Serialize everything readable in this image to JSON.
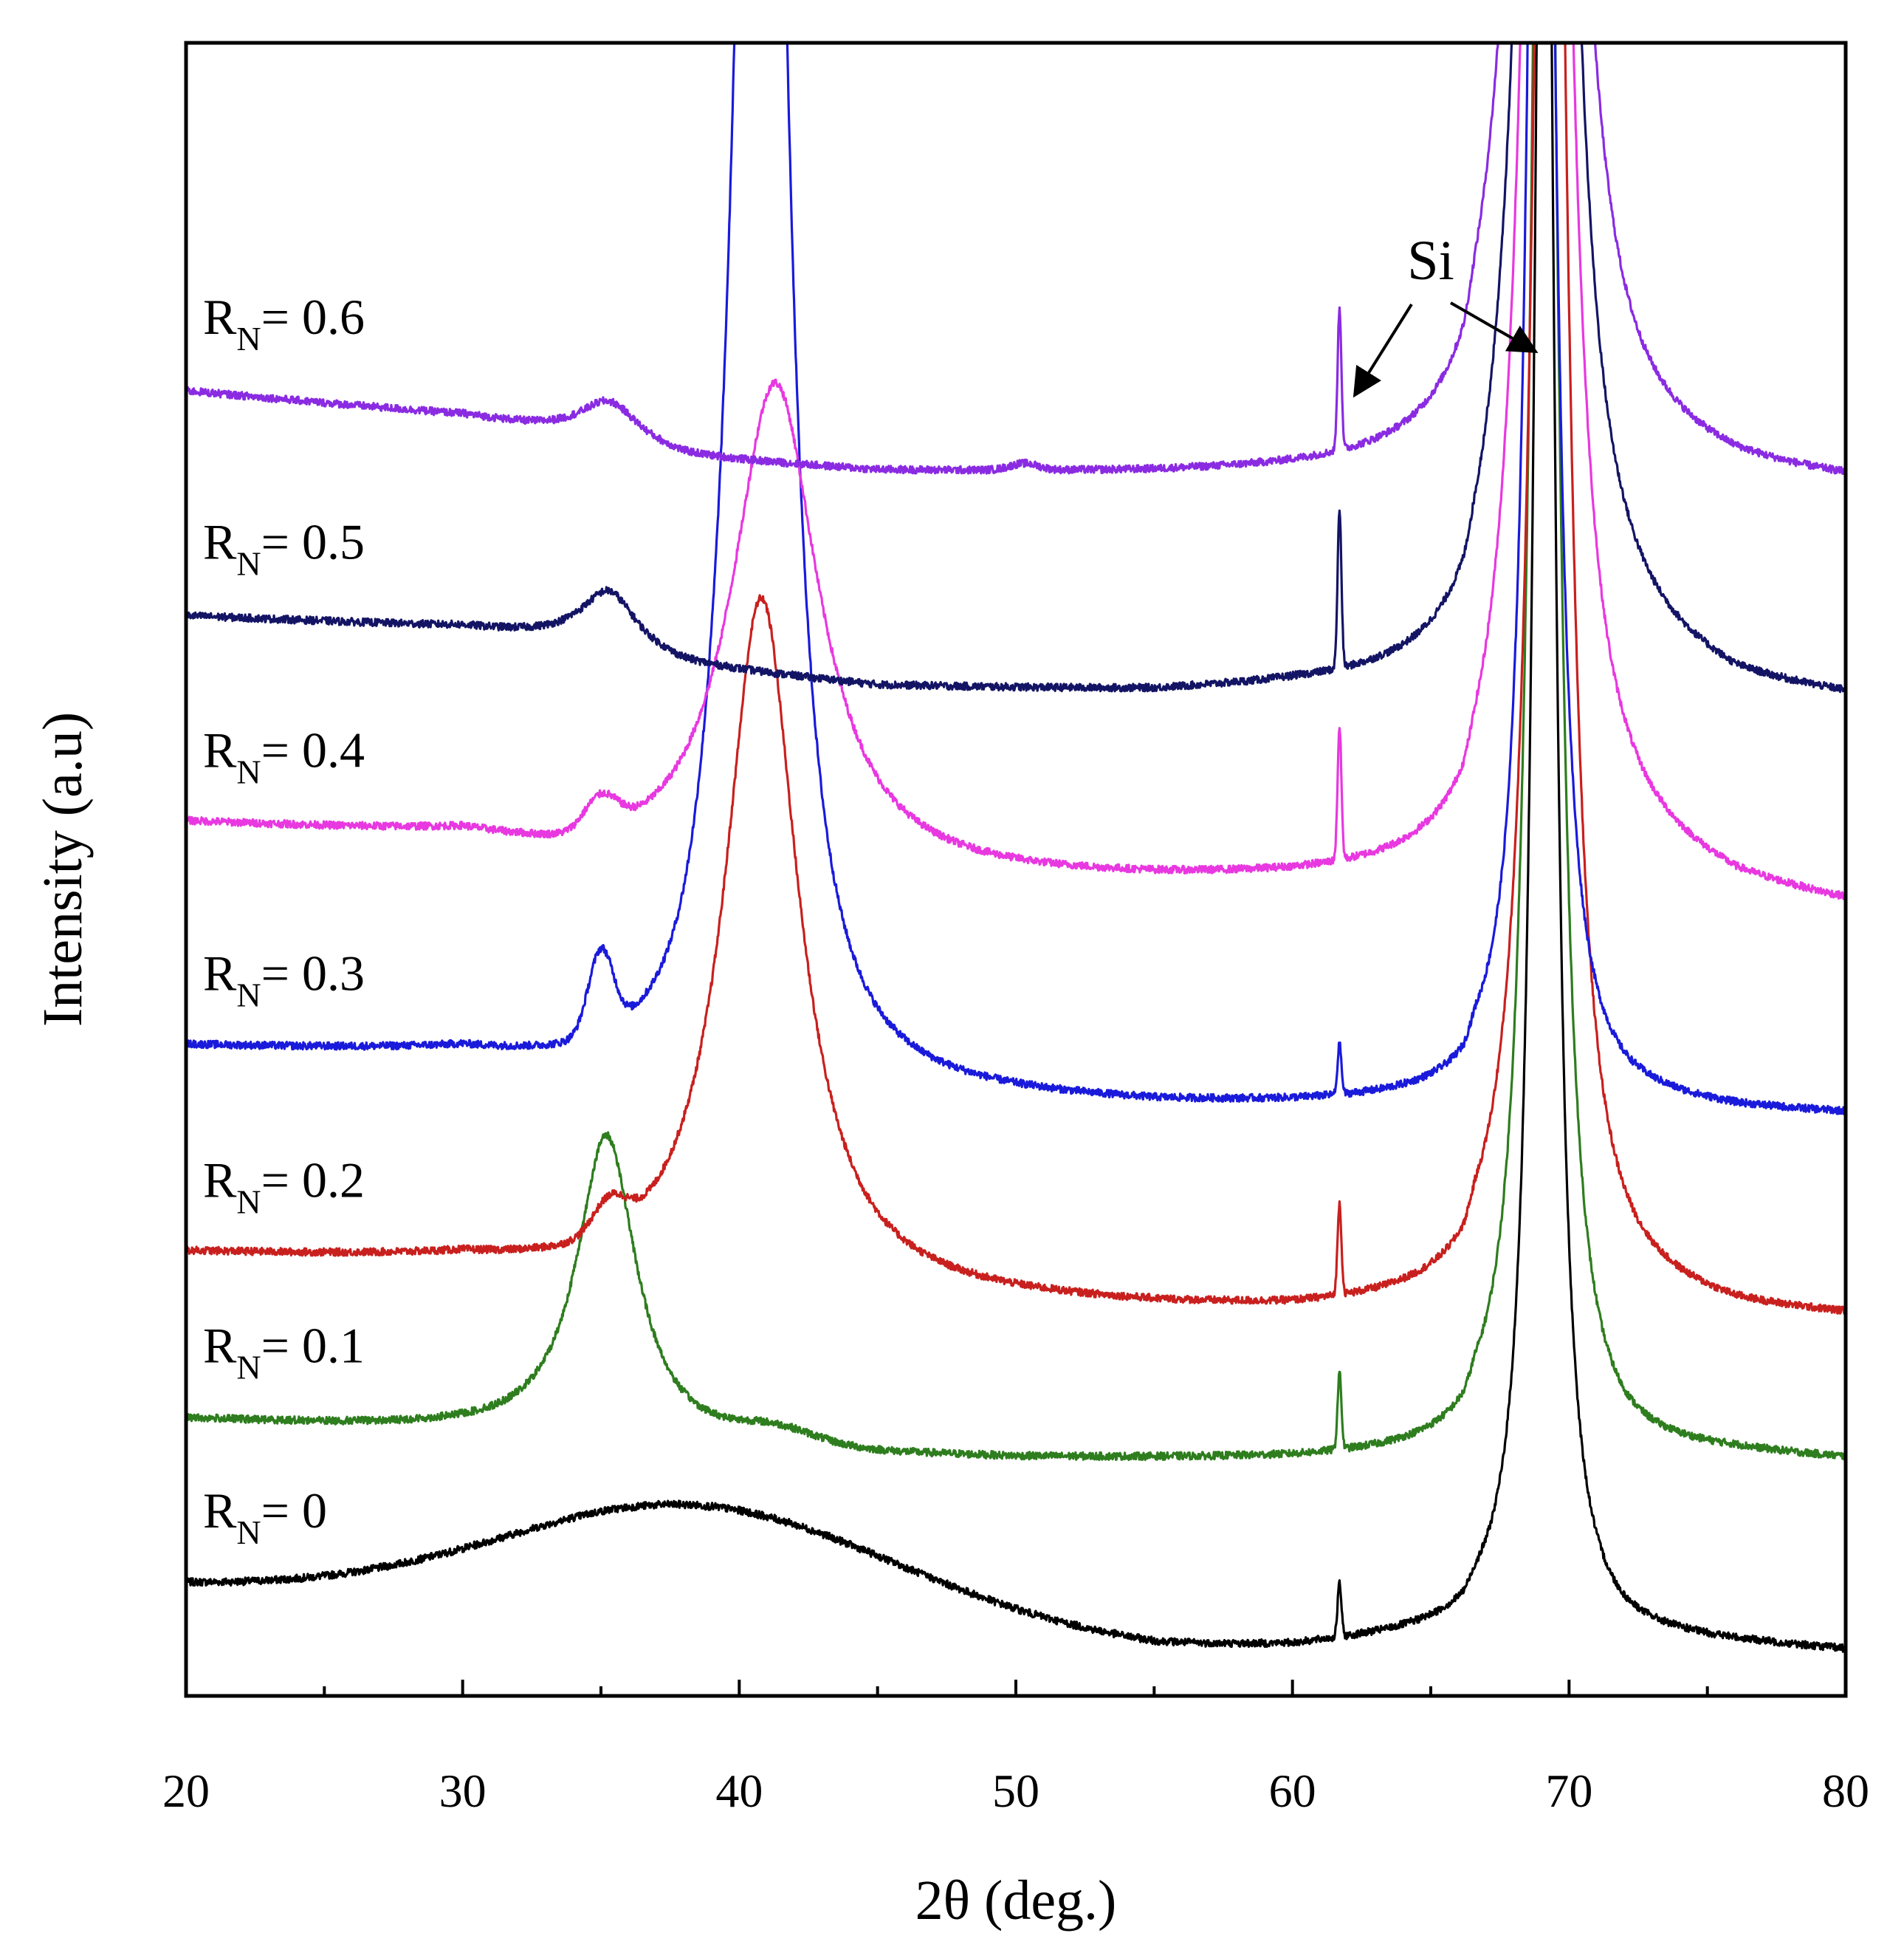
{
  "chart_data": {
    "type": "line",
    "title": "",
    "xlabel": "2θ (deg.)",
    "ylabel": "Intensity (a.u)",
    "xlim": [
      20,
      80
    ],
    "ylim": [
      0,
      100
    ],
    "x_ticks": [
      20,
      30,
      40,
      50,
      60,
      70,
      80
    ],
    "x_tick_labels": [
      "20",
      "30",
      "40",
      "50",
      "60",
      "70",
      "80"
    ],
    "x_minor_step": 5,
    "y_ticks_shown": false,
    "annotation": {
      "text": "Si",
      "peaks_2theta": [
        61.7,
        69.1
      ]
    },
    "series": [
      {
        "name": "RN= 0",
        "label_main": "R",
        "label_sub": "N",
        "label_rest": "= 0",
        "color": "#000000",
        "offset": 1.5,
        "baseline": [
          [
            20,
            5.2
          ],
          [
            30,
            4.4
          ],
          [
            35,
            4.0
          ],
          [
            45,
            2.6
          ],
          [
            55,
            1.3
          ],
          [
            60,
            1.4
          ],
          [
            66.2,
            2.3
          ],
          [
            66.6,
            3.0
          ],
          [
            68,
            3.6
          ],
          [
            72,
            2.0
          ],
          [
            76,
            1.6
          ],
          [
            80,
            1.2
          ]
        ],
        "peaks": [
          {
            "pos": 38.7,
            "height": 6.5,
            "width": 7.0,
            "shape": "gauss"
          },
          {
            "pos": 61.7,
            "height": 3.2,
            "width": 0.07,
            "shape": "gauss"
          },
          {
            "pos": 69.1,
            "height": 140,
            "width": 0.4,
            "shape": "lorentz"
          }
        ]
      },
      {
        "name": "RN= 0.1",
        "label_main": "R",
        "label_sub": "N",
        "label_rest": "= 0.1",
        "color": "#2e7d1e",
        "offset": 11.5,
        "baseline": [
          [
            20,
            5.2
          ],
          [
            30,
            4.5
          ],
          [
            33,
            4.2
          ],
          [
            40,
            3.2
          ],
          [
            50,
            2.8
          ],
          [
            60,
            2.7
          ],
          [
            66.2,
            2.9
          ],
          [
            66.6,
            3.8
          ],
          [
            68,
            4.2
          ],
          [
            72,
            3.0
          ],
          [
            76,
            3.0
          ],
          [
            80,
            2.7
          ]
        ],
        "peaks": [
          {
            "pos": 35.2,
            "height": 18.5,
            "width": 1.3,
            "shape": "lorentz"
          },
          {
            "pos": 41.2,
            "height": 1.0,
            "width": 1.5,
            "shape": "gauss"
          },
          {
            "pos": 61.7,
            "height": 4.6,
            "width": 0.07,
            "shape": "gauss"
          },
          {
            "pos": 69.1,
            "height": 140,
            "width": 0.5,
            "shape": "lorentz"
          }
        ]
      },
      {
        "name": "RN= 0.2",
        "label_main": "R",
        "label_sub": "N",
        "label_rest": "= 0.2",
        "color": "#c8201e",
        "offset": 21.5,
        "baseline": [
          [
            20,
            5.2
          ],
          [
            30,
            4.6
          ],
          [
            35,
            3.5
          ],
          [
            45,
            2.4
          ],
          [
            55,
            1.8
          ],
          [
            60,
            1.6
          ],
          [
            66.2,
            1.9
          ],
          [
            66.6,
            3.0
          ],
          [
            68,
            3.6
          ],
          [
            72,
            2.6
          ],
          [
            76,
            1.6
          ],
          [
            80,
            1.3
          ]
        ],
        "peaks": [
          {
            "pos": 35.3,
            "height": 2.0,
            "width": 0.6,
            "shape": "gauss"
          },
          {
            "pos": 40.8,
            "height": 42.0,
            "width": 1.6,
            "shape": "lorentz"
          },
          {
            "pos": 61.7,
            "height": 5.5,
            "width": 0.07,
            "shape": "gauss"
          },
          {
            "pos": 69.3,
            "height": 140,
            "width": 0.6,
            "shape": "lorentz"
          }
        ]
      },
      {
        "name": "RN= 0.3",
        "label_main": "R",
        "label_sub": "N",
        "label_rest": "= 0.3",
        "color": "#1a1adb",
        "offset": 34.0,
        "baseline": [
          [
            20,
            5.2
          ],
          [
            30,
            4.6
          ],
          [
            33.5,
            3.6
          ],
          [
            38,
            2.6
          ],
          [
            45,
            2.1
          ],
          [
            55,
            1.6
          ],
          [
            60,
            1.6
          ],
          [
            66.2,
            1.8
          ],
          [
            66.6,
            2.8
          ],
          [
            68,
            3.2
          ],
          [
            72,
            1.8
          ],
          [
            76,
            1.3
          ],
          [
            80,
            1.1
          ]
        ],
        "peaks": [
          {
            "pos": 35.0,
            "height": 5.0,
            "width": 0.45,
            "shape": "gauss"
          },
          {
            "pos": 39.7,
            "height": 3.5,
            "width": 0.9,
            "shape": "gauss"
          },
          {
            "pos": 40.8,
            "height": 140,
            "width": 0.85,
            "shape": "lorentz"
          },
          {
            "pos": 61.7,
            "height": 3.0,
            "width": 0.07,
            "shape": "gauss"
          },
          {
            "pos": 69.0,
            "height": 140,
            "width": 0.45,
            "shape": "lorentz"
          }
        ]
      },
      {
        "name": "RN= 0.4",
        "label_main": "R",
        "label_sub": "N",
        "label_rest": "= 0.4",
        "color": "#e838e0",
        "offset": 47.5,
        "baseline": [
          [
            20,
            5.2
          ],
          [
            30,
            4.3
          ],
          [
            34,
            2.7
          ],
          [
            38,
            2.0
          ],
          [
            45,
            1.7
          ],
          [
            55,
            1.6
          ],
          [
            60,
            1.6
          ],
          [
            66.2,
            1.7
          ],
          [
            66.6,
            2.8
          ],
          [
            68,
            4.2
          ],
          [
            72,
            3.4
          ],
          [
            76,
            1.2
          ],
          [
            80,
            0.2
          ]
        ],
        "peaks": [
          {
            "pos": 35.0,
            "height": 2.0,
            "width": 0.6,
            "shape": "gauss"
          },
          {
            "pos": 41.3,
            "height": 30.0,
            "width": 1.9,
            "shape": "lorentz"
          },
          {
            "pos": 61.7,
            "height": 8.0,
            "width": 0.07,
            "shape": "gauss"
          },
          {
            "pos": 69.2,
            "height": 140,
            "width": 0.7,
            "shape": "lorentz"
          }
        ]
      },
      {
        "name": "RN= 0.5",
        "label_main": "R",
        "label_sub": "N",
        "label_rest": "= 0.5",
        "color": "#141465",
        "offset": 60.0,
        "baseline": [
          [
            20,
            5.3
          ],
          [
            30,
            4.6
          ],
          [
            34,
            3.8
          ],
          [
            38,
            2.2
          ],
          [
            45,
            1.0
          ],
          [
            55,
            0.6
          ],
          [
            60,
            0.8
          ],
          [
            66.2,
            0.8
          ],
          [
            66.6,
            2.0
          ],
          [
            68,
            4.0
          ],
          [
            72,
            3.0
          ],
          [
            76,
            0.8
          ],
          [
            80,
            0.2
          ]
        ],
        "peaks": [
          {
            "pos": 35.3,
            "height": 3.5,
            "width": 1.2,
            "shape": "lorentz"
          },
          {
            "pos": 61.7,
            "height": 9.5,
            "width": 0.07,
            "shape": "gauss"
          },
          {
            "pos": 69.2,
            "height": 140,
            "width": 0.75,
            "shape": "lorentz"
          }
        ]
      },
      {
        "name": "RN= 0.6",
        "label_main": "R",
        "label_sub": "N",
        "label_rest": "= 0.6",
        "color": "#8a2be2",
        "offset": 73.0,
        "baseline": [
          [
            20,
            5.9
          ],
          [
            30,
            4.4
          ],
          [
            34,
            3.2
          ],
          [
            38,
            1.8
          ],
          [
            45,
            1.0
          ],
          [
            55,
            0.8
          ],
          [
            60,
            0.8
          ],
          [
            66.2,
            0.8
          ],
          [
            66.6,
            2.2
          ],
          [
            68,
            4.2
          ],
          [
            72,
            2.0
          ],
          [
            76,
            0.8
          ],
          [
            80,
            0.3
          ]
        ],
        "peaks": [
          {
            "pos": 35.3,
            "height": 2.5,
            "width": 1.3,
            "shape": "lorentz"
          },
          {
            "pos": 50.3,
            "height": 0.4,
            "width": 0.5,
            "shape": "gauss"
          },
          {
            "pos": 61.7,
            "height": 8.5,
            "width": 0.07,
            "shape": "gauss"
          },
          {
            "pos": 69.2,
            "height": 140,
            "width": 0.8,
            "shape": "lorentz"
          }
        ]
      }
    ]
  }
}
